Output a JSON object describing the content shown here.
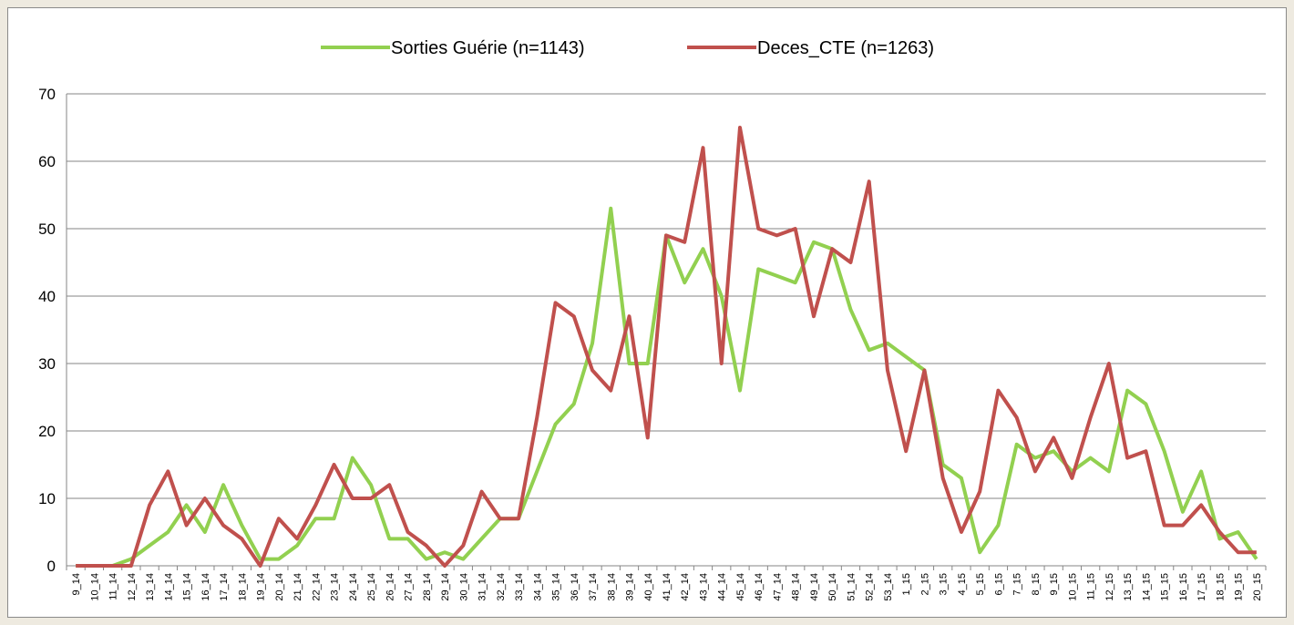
{
  "chart_data": {
    "type": "line",
    "categories": [
      "9_14",
      "10_14",
      "11_14",
      "12_14",
      "13_14",
      "14_14",
      "15_14",
      "16_14",
      "17_14",
      "18_14",
      "19_14",
      "20_14",
      "21_14",
      "22_14",
      "23_14",
      "24_14",
      "25_14",
      "26_14",
      "27_14",
      "28_14",
      "29_14",
      "30_14",
      "31_14",
      "32_14",
      "33_14",
      "34_14",
      "35_14",
      "36_14",
      "37_14",
      "38_14",
      "39_14",
      "40_14",
      "41_14",
      "42_14",
      "43_14",
      "44_14",
      "45_14",
      "46_14",
      "47_14",
      "48_14",
      "49_14",
      "50_14",
      "51_14",
      "52_14",
      "53_14",
      "1_15",
      "2_15",
      "3_15",
      "4_15",
      "5_15",
      "6_15",
      "7_15",
      "8_15",
      "9_15",
      "10_15",
      "11_15",
      "12_15",
      "13_15",
      "14_15",
      "15_15",
      "16_15",
      "17_15",
      "18_15",
      "19_15",
      "20_15"
    ],
    "series": [
      {
        "name": "Sorties Guérie (n=1143)",
        "color": "#92d050",
        "values": [
          0,
          0,
          0,
          1,
          3,
          5,
          9,
          5,
          12,
          6,
          1,
          1,
          3,
          7,
          7,
          16,
          12,
          4,
          4,
          1,
          2,
          1,
          4,
          7,
          7,
          14,
          21,
          24,
          33,
          53,
          30,
          30,
          49,
          42,
          47,
          40,
          26,
          44,
          43,
          42,
          48,
          47,
          38,
          32,
          33,
          31,
          29,
          15,
          13,
          2,
          6,
          18,
          16,
          17,
          14,
          16,
          14,
          26,
          24,
          17,
          8,
          14,
          4,
          5,
          1
        ]
      },
      {
        "name": "Deces_CTE (n=1263)",
        "color": "#c0504d",
        "values": [
          0,
          0,
          0,
          0,
          9,
          14,
          6,
          10,
          6,
          4,
          0,
          7,
          4,
          9,
          15,
          10,
          10,
          12,
          5,
          3,
          0,
          3,
          11,
          7,
          7,
          22,
          39,
          37,
          29,
          26,
          37,
          19,
          49,
          48,
          62,
          30,
          65,
          50,
          49,
          50,
          37,
          47,
          45,
          57,
          29,
          17,
          29,
          13,
          5,
          11,
          26,
          22,
          14,
          19,
          13,
          22,
          30,
          16,
          17,
          6,
          6,
          9,
          5,
          2,
          2
        ]
      }
    ],
    "ylim": [
      0,
      70
    ],
    "yticks": [
      0,
      10,
      20,
      30,
      40,
      50,
      60,
      70
    ],
    "grid": true,
    "legend": "top"
  }
}
